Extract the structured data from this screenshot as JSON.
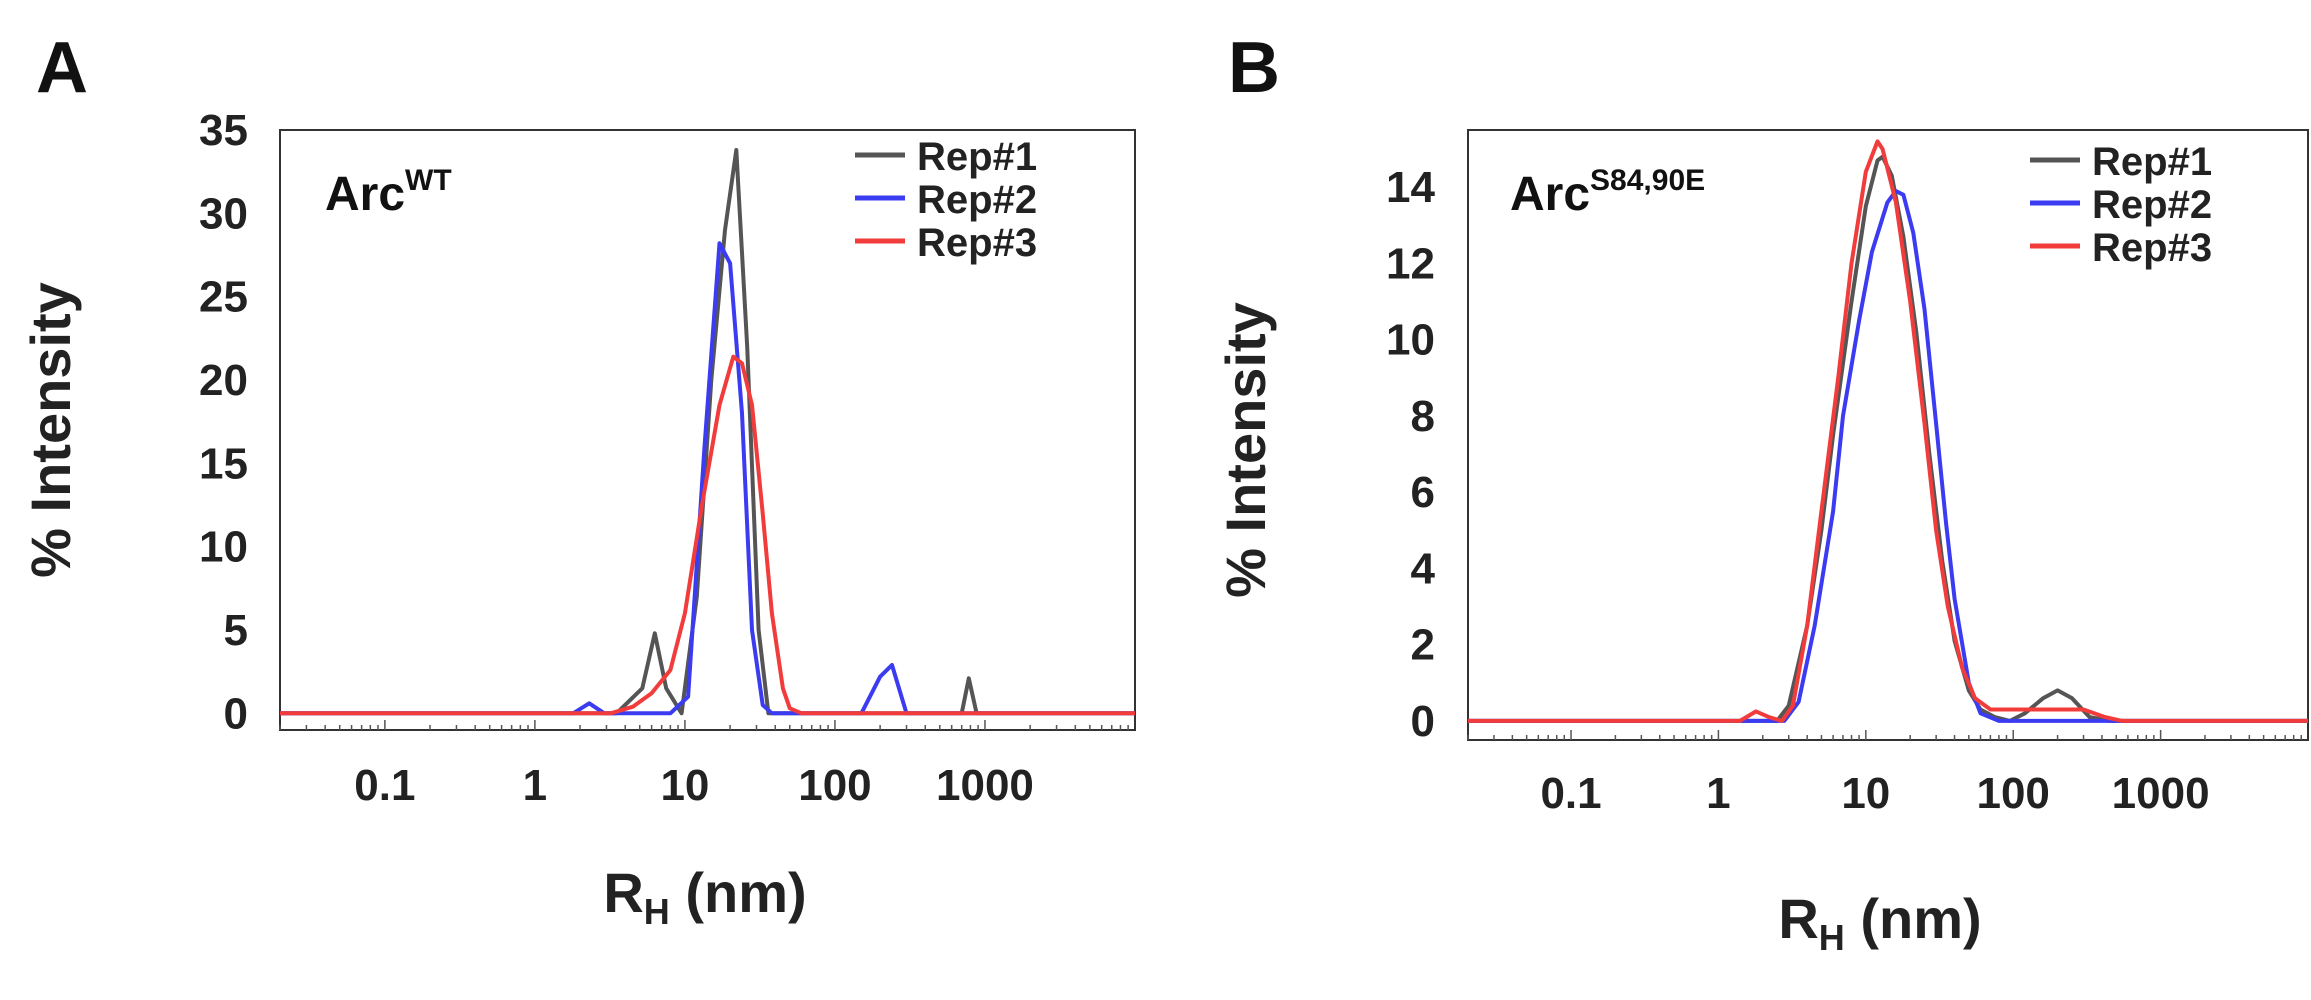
{
  "colors": {
    "rep1": "#555555",
    "rep2": "#3b3bf2",
    "rep3": "#f23b3b",
    "baseline": "#f23b3b"
  },
  "chart_data": [
    {
      "type": "line",
      "panel_letter": "A",
      "sample_label_main": "Arc",
      "sample_label_sup": "WT",
      "xlabel_main": "R",
      "xlabel_sub": "H",
      "xlabel_units": "(nm)",
      "ylabel": "% Intensity",
      "xscale": "log",
      "xlim": [
        0.02,
        10000
      ],
      "ylim": [
        -1,
        35
      ],
      "xticks": [
        0.1,
        1,
        10,
        100,
        1000
      ],
      "xtick_labels": [
        "0.1",
        "1",
        "10",
        "100",
        "1000"
      ],
      "yticks": [
        0,
        5,
        10,
        15,
        20,
        25,
        30,
        35
      ],
      "ytick_labels": [
        "0",
        "5",
        "10",
        "15",
        "20",
        "25",
        "30",
        "35"
      ],
      "legend_position": "top-right",
      "series": [
        {
          "name": "Rep#1",
          "color": "#555555",
          "x": [
            0.02,
            3.5,
            5.2,
            6.3,
            7.5,
            9.5,
            12,
            15,
            18.5,
            22,
            26,
            31,
            36,
            43,
            700,
            780,
            880,
            1000,
            10000
          ],
          "y": [
            0,
            0,
            1.5,
            4.8,
            1.5,
            0,
            7,
            20,
            29,
            33.8,
            22,
            5,
            0,
            0,
            0,
            2.1,
            0,
            0,
            0
          ]
        },
        {
          "name": "Rep#2",
          "color": "#3b3bf2",
          "x": [
            0.02,
            1.8,
            2.3,
            2.9,
            3.5,
            5,
            8,
            10.5,
            13.5,
            17,
            20,
            24,
            28,
            33,
            38,
            45,
            150,
            200,
            240,
            300,
            10000
          ],
          "y": [
            0,
            0,
            0.6,
            0,
            0,
            0,
            0,
            1,
            16,
            28.2,
            27,
            18,
            5,
            0.5,
            0,
            0,
            0,
            2.2,
            2.9,
            0,
            0
          ]
        },
        {
          "name": "Rep#3",
          "color": "#f23b3b",
          "x": [
            0.02,
            3.2,
            4.5,
            6,
            8,
            10,
            13,
            17,
            21,
            24,
            28,
            33,
            38,
            45,
            50,
            60,
            10000
          ],
          "y": [
            0,
            0,
            0.4,
            1.2,
            2.6,
            6,
            12.5,
            18.5,
            21.4,
            21,
            18.5,
            12,
            6,
            1.5,
            0.3,
            0,
            0
          ]
        }
      ]
    },
    {
      "type": "line",
      "panel_letter": "B",
      "sample_label_main": "Arc",
      "sample_label_sup": "S84,90E",
      "xlabel_main": "R",
      "xlabel_sub": "H",
      "xlabel_units": "(nm)",
      "ylabel": "% Intensity",
      "xscale": "log",
      "xlim": [
        0.02,
        10000
      ],
      "ylim": [
        -0.5,
        15.5
      ],
      "xticks": [
        0.1,
        1,
        10,
        100,
        1000
      ],
      "xtick_labels": [
        "0.1",
        "1",
        "10",
        "100",
        "1000"
      ],
      "yticks": [
        0,
        2,
        4,
        6,
        8,
        10,
        12,
        14
      ],
      "ytick_labels": [
        "0",
        "2",
        "4",
        "6",
        "8",
        "10",
        "12",
        "14"
      ],
      "legend_position": "top-right",
      "series": [
        {
          "name": "Rep#1",
          "color": "#555555",
          "x": [
            0.02,
            1.5,
            2.5,
            3,
            4,
            5,
            6,
            8,
            10,
            12,
            13,
            15,
            18,
            22,
            27,
            33,
            40,
            50,
            60,
            75,
            95,
            120,
            160,
            200,
            250,
            330,
            450,
            10000
          ],
          "y": [
            0,
            0,
            0,
            0.4,
            2.5,
            5,
            7.5,
            11,
            13.5,
            14.7,
            14.8,
            14.3,
            12.7,
            10.2,
            7,
            4.2,
            2.1,
            0.8,
            0.3,
            0.1,
            0,
            0.2,
            0.6,
            0.8,
            0.6,
            0.1,
            0,
            0
          ]
        },
        {
          "name": "Rep#2",
          "color": "#3b3bf2",
          "x": [
            0.02,
            2,
            2.8,
            3.5,
            4.5,
            6,
            7,
            9,
            11,
            14,
            16,
            18,
            21,
            25,
            30,
            35,
            40,
            50,
            60,
            80,
            10000
          ],
          "y": [
            0,
            0,
            0,
            0.5,
            2.5,
            5.5,
            8,
            10.5,
            12.3,
            13.6,
            13.9,
            13.8,
            12.8,
            10.8,
            7.8,
            5.2,
            3.2,
            1,
            0.2,
            0,
            0
          ]
        },
        {
          "name": "Rep#3",
          "color": "#f23b3b",
          "x": [
            0.02,
            1.4,
            1.8,
            2.2,
            2.7,
            3.2,
            4,
            5,
            6.5,
            8,
            10,
            12,
            13,
            16,
            20,
            25,
            30,
            36,
            45,
            55,
            70,
            90,
            130,
            200,
            300,
            420,
            550,
            10000
          ],
          "y": [
            0,
            0,
            0.25,
            0.1,
            0,
            0.4,
            2.5,
            5.5,
            9,
            12,
            14.4,
            15.2,
            15,
            13.6,
            11,
            7.8,
            5,
            3,
            1.4,
            0.6,
            0.3,
            0.3,
            0.3,
            0.3,
            0.3,
            0.1,
            0,
            0
          ]
        }
      ]
    }
  ]
}
